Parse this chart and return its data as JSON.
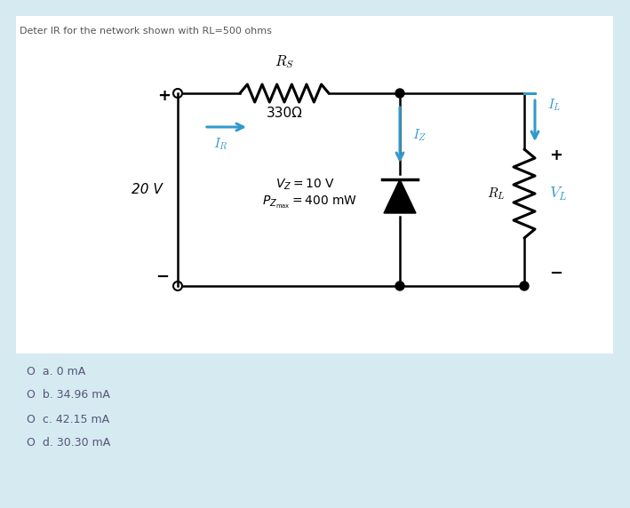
{
  "title": "Deter IR for the network shown with RL=500 ohms",
  "bg_color": "#d6eaf2",
  "white_box_color": "#ffffff",
  "circuit_color": "#000000",
  "blue_color": "#3399cc",
  "answers": [
    "O  a. 0 mA",
    "O  b. 34.96 mA",
    "O  c. 42.15 mA",
    "O  d. 30.30 mA"
  ],
  "Rs_label": "$R_S$",
  "resistor_value": "330Ω",
  "Vz_label": "$V_Z = 10$ V",
  "Pz_label": "$P_{Z_{\\mathrm{max}}} = 400$ mW",
  "IR_label": "$I_R$",
  "Iz_label": "$I_Z$",
  "IL_label": "$I_L$",
  "RL_label": "$R_L$",
  "VL_label": "$V_L$",
  "Vs_label": "20 V"
}
